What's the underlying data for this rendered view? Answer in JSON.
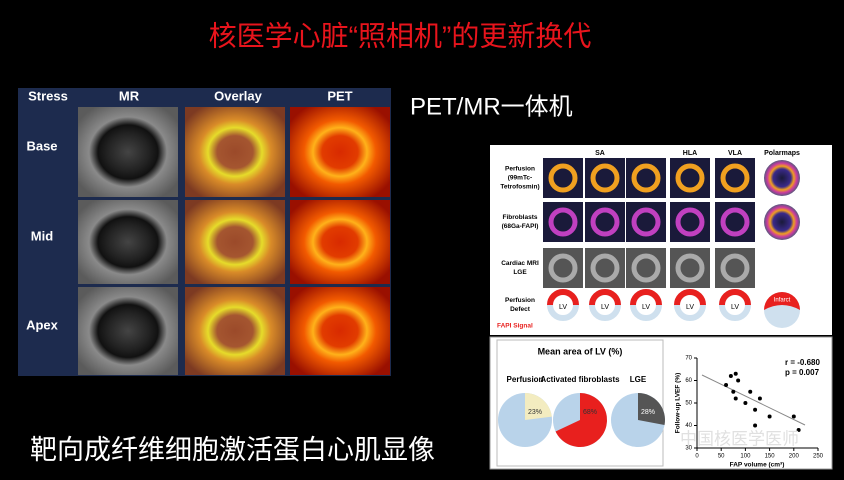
{
  "title": "核医学心脏“照相机”的更新换代",
  "subtitle": "PET/MR一体机",
  "caption": "靶向成纤维细胞激活蛋白心肌显像",
  "watermark": "中国核医学医师",
  "left_panel": {
    "headers": [
      "Stress",
      "MR",
      "Overlay",
      "PET"
    ],
    "rows": [
      "Base",
      "Mid",
      "Apex"
    ]
  },
  "right_figure": {
    "columns": [
      "SA",
      "HLA",
      "VLA",
      "Polarmaps"
    ],
    "rows": [
      [
        "Perfusion",
        "(99mTc-",
        "Tetrofosmin)"
      ],
      [
        "Fibroblasts",
        "(68Ga-FAPI)"
      ],
      [
        "Cardiac MRI",
        "LGE"
      ],
      [
        "Perfusion",
        "Defect"
      ]
    ],
    "fapi_label": "FAPI Signal",
    "lv_label": "LV",
    "infarct_label": "Infarct",
    "pie_title": "Mean area of LV (%)",
    "pies": [
      {
        "name": "Perfusion",
        "value": 23,
        "label": "23%",
        "color": "#f3ecc0"
      },
      {
        "name": "Activated fibroblasts",
        "value": 68,
        "label": "68%",
        "color": "#e8201e"
      },
      {
        "name": "LGE",
        "value": 28,
        "label": "28%",
        "color": "#555555"
      }
    ],
    "scatter": {
      "r": "r = -0.680",
      "p": "p = 0.007",
      "ylabel": "Follow-up LVEF (%)",
      "xlabel": "FAP volume (cm³)",
      "xlim": [
        0,
        250
      ],
      "ylim": [
        30,
        70
      ],
      "xticks": [
        0,
        50,
        100,
        150,
        200,
        250
      ],
      "yticks": [
        30,
        40,
        50,
        60,
        70
      ],
      "x": [
        60,
        70,
        75,
        80,
        85,
        80,
        100,
        110,
        120,
        130,
        150,
        120,
        200,
        210
      ],
      "y": [
        58,
        62,
        55,
        63,
        60,
        52,
        50,
        55,
        47,
        52,
        44,
        40,
        44,
        38
      ]
    }
  }
}
